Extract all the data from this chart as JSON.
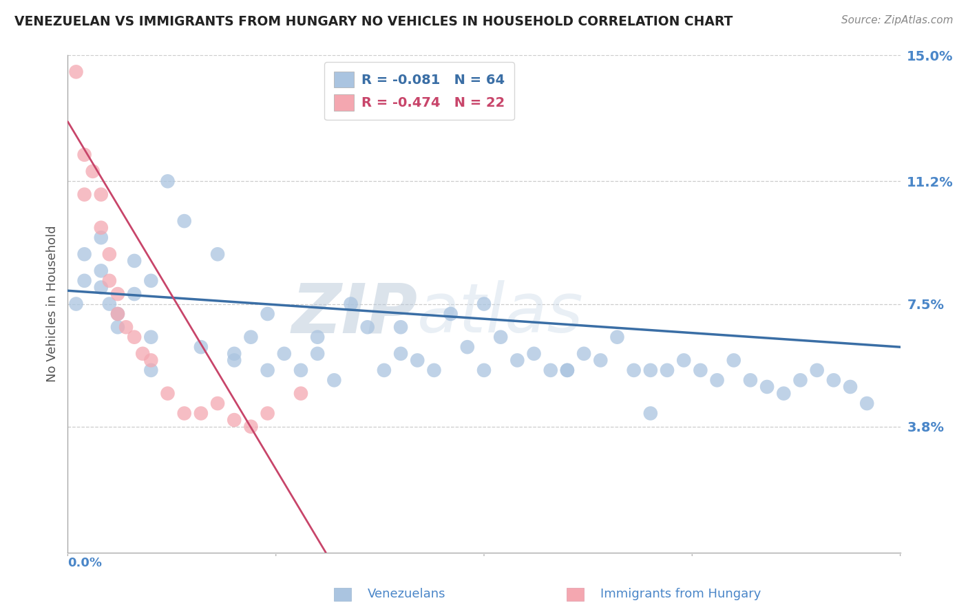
{
  "title": "VENEZUELAN VS IMMIGRANTS FROM HUNGARY NO VEHICLES IN HOUSEHOLD CORRELATION CHART",
  "source": "Source: ZipAtlas.com",
  "ylabel": "No Vehicles in Household",
  "xlabel_venezuelans": "Venezuelans",
  "xlabel_hungary": "Immigrants from Hungary",
  "watermark_zip": "ZIP",
  "watermark_atlas": "atlas",
  "legend_venezuelans": {
    "R": "-0.081",
    "N": 64
  },
  "legend_hungary": {
    "R": "-0.474",
    "N": 22
  },
  "xmin": 0.0,
  "xmax": 0.5,
  "ymin": 0.0,
  "ymax": 0.15,
  "yticks": [
    0.0,
    0.038,
    0.075,
    0.112,
    0.15
  ],
  "ytick_labels": [
    "",
    "3.8%",
    "7.5%",
    "11.2%",
    "15.0%"
  ],
  "xticks": [
    0.0,
    0.125,
    0.25,
    0.375,
    0.5
  ],
  "color_venezuelan": "#aac4e0",
  "color_hungary": "#f4a7b0",
  "trend_color_venezuelan": "#3a6ea5",
  "trend_color_hungary": "#c8456a",
  "venezuelan_x": [
    0.005,
    0.01,
    0.01,
    0.02,
    0.02,
    0.02,
    0.025,
    0.03,
    0.03,
    0.04,
    0.04,
    0.05,
    0.05,
    0.06,
    0.07,
    0.08,
    0.09,
    0.1,
    0.11,
    0.12,
    0.12,
    0.13,
    0.14,
    0.15,
    0.16,
    0.17,
    0.18,
    0.19,
    0.2,
    0.21,
    0.22,
    0.23,
    0.24,
    0.25,
    0.26,
    0.27,
    0.28,
    0.29,
    0.3,
    0.31,
    0.32,
    0.33,
    0.34,
    0.35,
    0.36,
    0.37,
    0.38,
    0.39,
    0.4,
    0.41,
    0.42,
    0.43,
    0.44,
    0.45,
    0.46,
    0.47,
    0.48,
    0.35,
    0.3,
    0.25,
    0.2,
    0.15,
    0.1,
    0.05
  ],
  "venezuelan_y": [
    0.075,
    0.09,
    0.082,
    0.095,
    0.085,
    0.08,
    0.075,
    0.072,
    0.068,
    0.088,
    0.078,
    0.082,
    0.065,
    0.112,
    0.1,
    0.062,
    0.09,
    0.058,
    0.065,
    0.055,
    0.072,
    0.06,
    0.055,
    0.06,
    0.052,
    0.075,
    0.068,
    0.055,
    0.06,
    0.058,
    0.055,
    0.072,
    0.062,
    0.055,
    0.065,
    0.058,
    0.06,
    0.055,
    0.055,
    0.06,
    0.058,
    0.065,
    0.055,
    0.055,
    0.055,
    0.058,
    0.055,
    0.052,
    0.058,
    0.052,
    0.05,
    0.048,
    0.052,
    0.055,
    0.052,
    0.05,
    0.045,
    0.042,
    0.055,
    0.075,
    0.068,
    0.065,
    0.06,
    0.055
  ],
  "hungary_x": [
    0.005,
    0.01,
    0.01,
    0.015,
    0.02,
    0.02,
    0.025,
    0.025,
    0.03,
    0.03,
    0.035,
    0.04,
    0.045,
    0.05,
    0.06,
    0.07,
    0.08,
    0.09,
    0.1,
    0.11,
    0.12,
    0.14
  ],
  "hungary_y": [
    0.145,
    0.12,
    0.108,
    0.115,
    0.108,
    0.098,
    0.09,
    0.082,
    0.078,
    0.072,
    0.068,
    0.065,
    0.06,
    0.058,
    0.048,
    0.042,
    0.042,
    0.045,
    0.04,
    0.038,
    0.042,
    0.048
  ],
  "hun_trend_x0": 0.0,
  "hun_trend_x1": 0.155,
  "hun_trend_y0": 0.13,
  "hun_trend_y1": 0.0,
  "ven_trend_x0": 0.0,
  "ven_trend_x1": 0.5,
  "ven_trend_y0": 0.079,
  "ven_trend_y1": 0.062,
  "background_color": "#ffffff",
  "grid_color": "#cccccc",
  "title_color": "#222222",
  "axis_label_color": "#555555",
  "tick_color": "#4a86c8",
  "source_color": "#888888"
}
